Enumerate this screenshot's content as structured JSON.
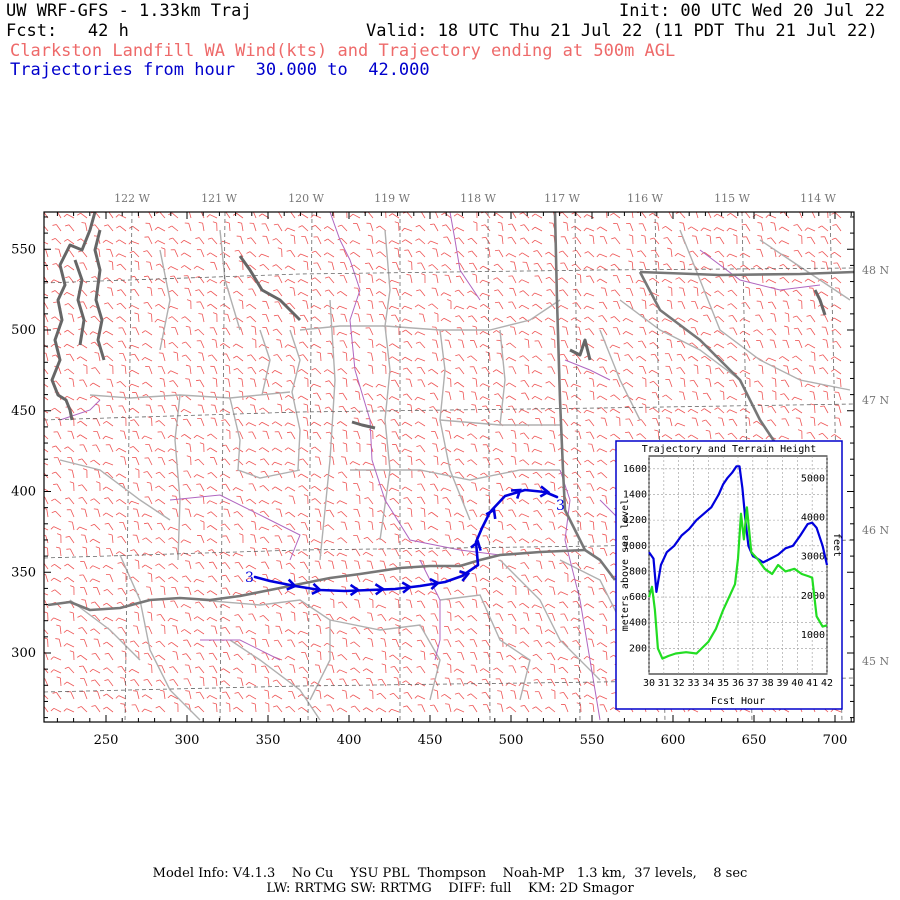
{
  "header": {
    "title": "UW WRF-GFS - 1.33km Traj",
    "init": "Init: 00 UTC Wed 20 Jul 22",
    "fcst": "Fcst:   42 h",
    "valid": "Valid: 18 UTC Thu 21 Jul 22 (11 PDT Thu 21 Jul 22)",
    "subtitle": "Clarkston Landfill WA Wind(kts) and Trajectory ending at 500m AGL",
    "traj_hours": "Trajectories from hour  30.000 to  42.000"
  },
  "map": {
    "lon_labels": [
      "122 W",
      "121 W",
      "120 W",
      "119 W",
      "118 W",
      "117 W",
      "116 W",
      "115 W",
      "114 W"
    ],
    "lat_labels": [
      "48 N",
      "47 N",
      "46 N",
      "45 N"
    ],
    "x_ticks": [
      "250",
      "300",
      "350",
      "400",
      "450",
      "500",
      "550",
      "600",
      "650",
      "700"
    ],
    "y_ticks": [
      "550",
      "500",
      "450",
      "400",
      "350",
      "300"
    ],
    "traj_start_label": "3",
    "traj_end_label": "3",
    "colors": {
      "wind_barbs": "#ee5555",
      "trajectory": "#0000dd",
      "state_border": "#777777",
      "county": "#aaaaaa",
      "rivers": "#aa55aa"
    }
  },
  "inset": {
    "title": "Trajectory and Terrain Height",
    "ylabel_left": "meters above sea level",
    "ylabel_right": "feet",
    "xlabel": "Fcst Hour",
    "y_ticks_left": [
      "1600",
      "1400",
      "1200",
      "1000",
      "800",
      "600",
      "400",
      "200"
    ],
    "y_ticks_right": [
      "5000",
      "4000",
      "3000",
      "2000",
      "1000"
    ],
    "x_ticks": [
      "30",
      "31",
      "32",
      "33",
      "34",
      "35",
      "36",
      "37",
      "38",
      "39",
      "40",
      "41",
      "42"
    ]
  },
  "chart_data": {
    "type": "line",
    "title": "Trajectory and Terrain Height",
    "xlabel": "Fcst Hour",
    "ylabel": "meters above sea level",
    "xlim": [
      30,
      42
    ],
    "ylim": [
      0,
      1700
    ],
    "series": [
      {
        "color": "#0000dd",
        "x": [
          30,
          30.3,
          30.5,
          30.8,
          31.2,
          31.7,
          32.2,
          32.7,
          33.2,
          33.7,
          34.2,
          34.7,
          35.0,
          35.3,
          35.6,
          35.9,
          36.1,
          36.3,
          36.5,
          36.7,
          37.0,
          37.3,
          37.7,
          38.2,
          38.7,
          39.2,
          39.7,
          40.2,
          40.7,
          41.0,
          41.3,
          41.7,
          42.0
        ],
        "y": [
          950,
          900,
          640,
          850,
          950,
          1000,
          1080,
          1130,
          1200,
          1250,
          1300,
          1400,
          1480,
          1530,
          1570,
          1620,
          1620,
          1450,
          1200,
          1000,
          920,
          900,
          870,
          900,
          930,
          980,
          1000,
          1080,
          1170,
          1180,
          1140,
          1000,
          850
        ]
      },
      {
        "color": "#22dd22",
        "x": [
          30,
          30.2,
          30.4,
          30.6,
          30.9,
          31.3,
          31.8,
          32.5,
          33.2,
          34.0,
          34.5,
          35.0,
          35.4,
          35.8,
          36.0,
          36.2,
          36.4,
          36.6,
          36.9,
          37.3,
          37.8,
          38.3,
          38.7,
          39.2,
          39.8,
          40.3,
          40.8,
          41.0,
          41.3,
          41.7,
          42.0
        ],
        "y": [
          600,
          680,
          500,
          200,
          120,
          140,
          160,
          170,
          160,
          250,
          350,
          500,
          600,
          700,
          900,
          1250,
          1050,
          1300,
          950,
          900,
          820,
          780,
          850,
          800,
          820,
          780,
          760,
          750,
          450,
          370,
          380
        ]
      }
    ]
  },
  "footer": {
    "line1": "Model Info: V4.1.3    No Cu    YSU PBL  Thompson    Noah-MP   1.3 km,  37 levels,    8 sec",
    "line2": "LW: RRTMG SW: RRTMG    DIFF: full    KM: 2D Smagor"
  }
}
